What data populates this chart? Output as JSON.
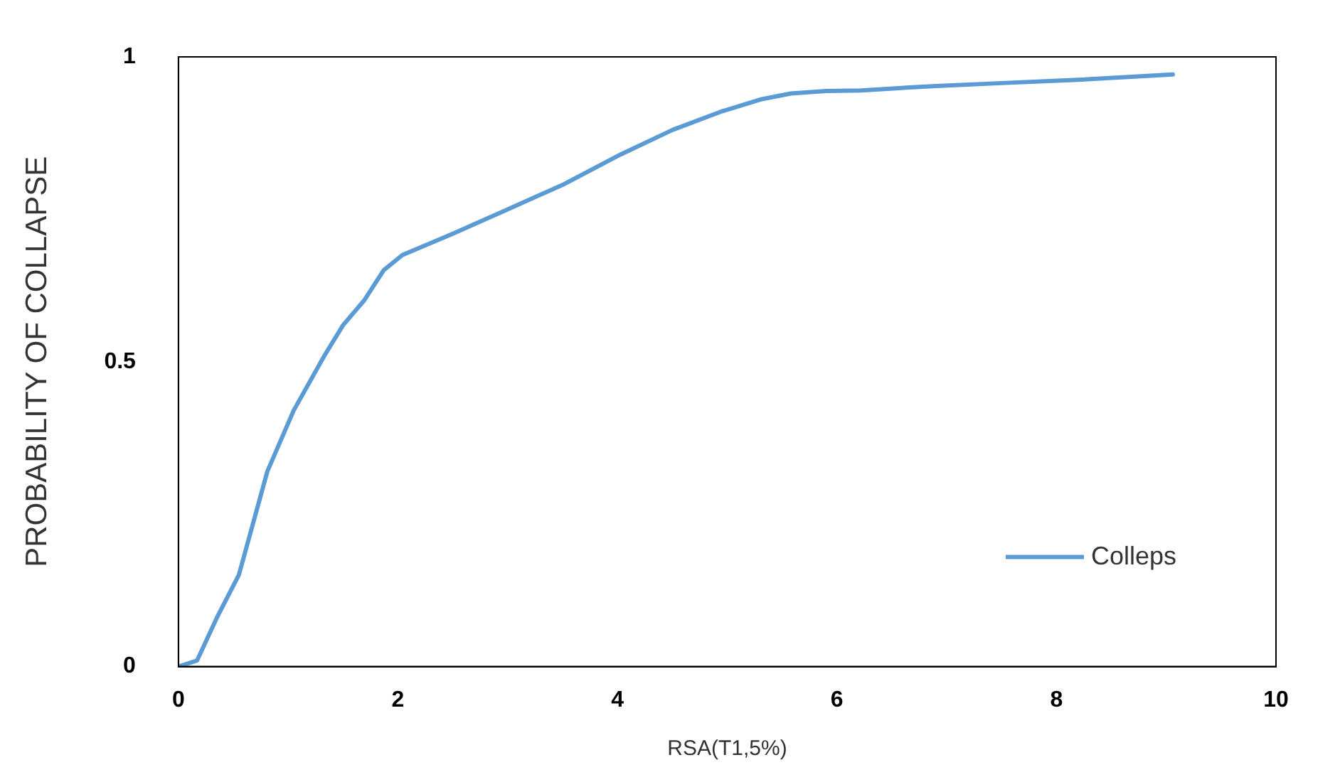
{
  "chart_data": {
    "type": "line",
    "xlabel": "RSA(T1,5%)",
    "ylabel": "PROBABILITY OF COLLAPSE",
    "xlim": [
      0,
      10
    ],
    "xticks": [
      0,
      2,
      4,
      6,
      8,
      10
    ],
    "ylim": [
      0,
      1
    ],
    "yticks": [
      0,
      0.5,
      1
    ],
    "grid": false,
    "legend": "bottom right",
    "marker": "none",
    "line_style": "solid",
    "series": [
      {
        "name": "Colleps",
        "color": "#5b9bd5",
        "x": [
          0,
          0.17,
          0.35,
          0.55,
          0.81,
          1.05,
          1.33,
          1.5,
          1.69,
          1.87,
          2.04,
          2.5,
          3.0,
          3.5,
          4.03,
          4.5,
          4.94,
          5.3,
          5.58,
          5.9,
          6.22,
          6.87,
          7.5,
          8.16,
          9.06
        ],
        "values": [
          0,
          0.01,
          0.08,
          0.15,
          0.32,
          0.42,
          0.51,
          0.56,
          0.6,
          0.65,
          0.675,
          0.71,
          0.75,
          0.79,
          0.84,
          0.88,
          0.91,
          0.93,
          0.94,
          0.944,
          0.945,
          0.952,
          0.957,
          0.962,
          0.971
        ]
      }
    ]
  }
}
